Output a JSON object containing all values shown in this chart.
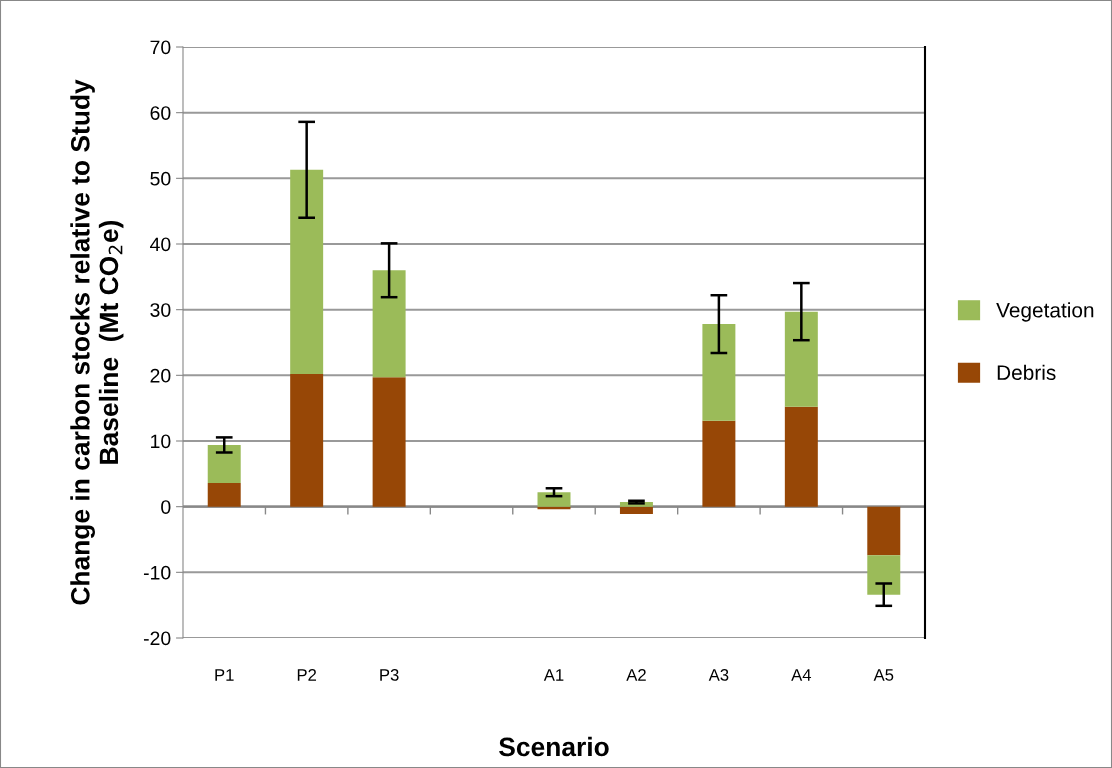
{
  "chart_data": {
    "type": "bar",
    "stacked": true,
    "xlabel": "Scenario",
    "ylabel": "Change in carbon stocks relative to Study\nBaseline  (Mt CO$_{2}$e)",
    "categories": [
      "P1",
      "P2",
      "P3",
      null,
      "A1",
      "A2",
      "A3",
      "A4",
      "A5"
    ],
    "series": [
      {
        "name": "Debris",
        "color": "#974706",
        "values": [
          3.6,
          20.2,
          19.7,
          null,
          -0.4,
          -1.1,
          13.1,
          15.2,
          -7.4
        ]
      },
      {
        "name": "Vegetation",
        "color": "#9bbb59",
        "values": [
          5.8,
          31.1,
          16.3,
          null,
          2.2,
          0.7,
          14.7,
          14.5,
          -6.0
        ],
        "errors": [
          1.15,
          7.3,
          4.1,
          null,
          0.6,
          0.2,
          4.4,
          4.35,
          1.7
        ]
      }
    ],
    "ylim": [
      -20,
      70
    ],
    "yticks": [
      -20,
      -10,
      0,
      10,
      20,
      30,
      40,
      50,
      60,
      70
    ],
    "grid": "y",
    "legend": "right"
  }
}
